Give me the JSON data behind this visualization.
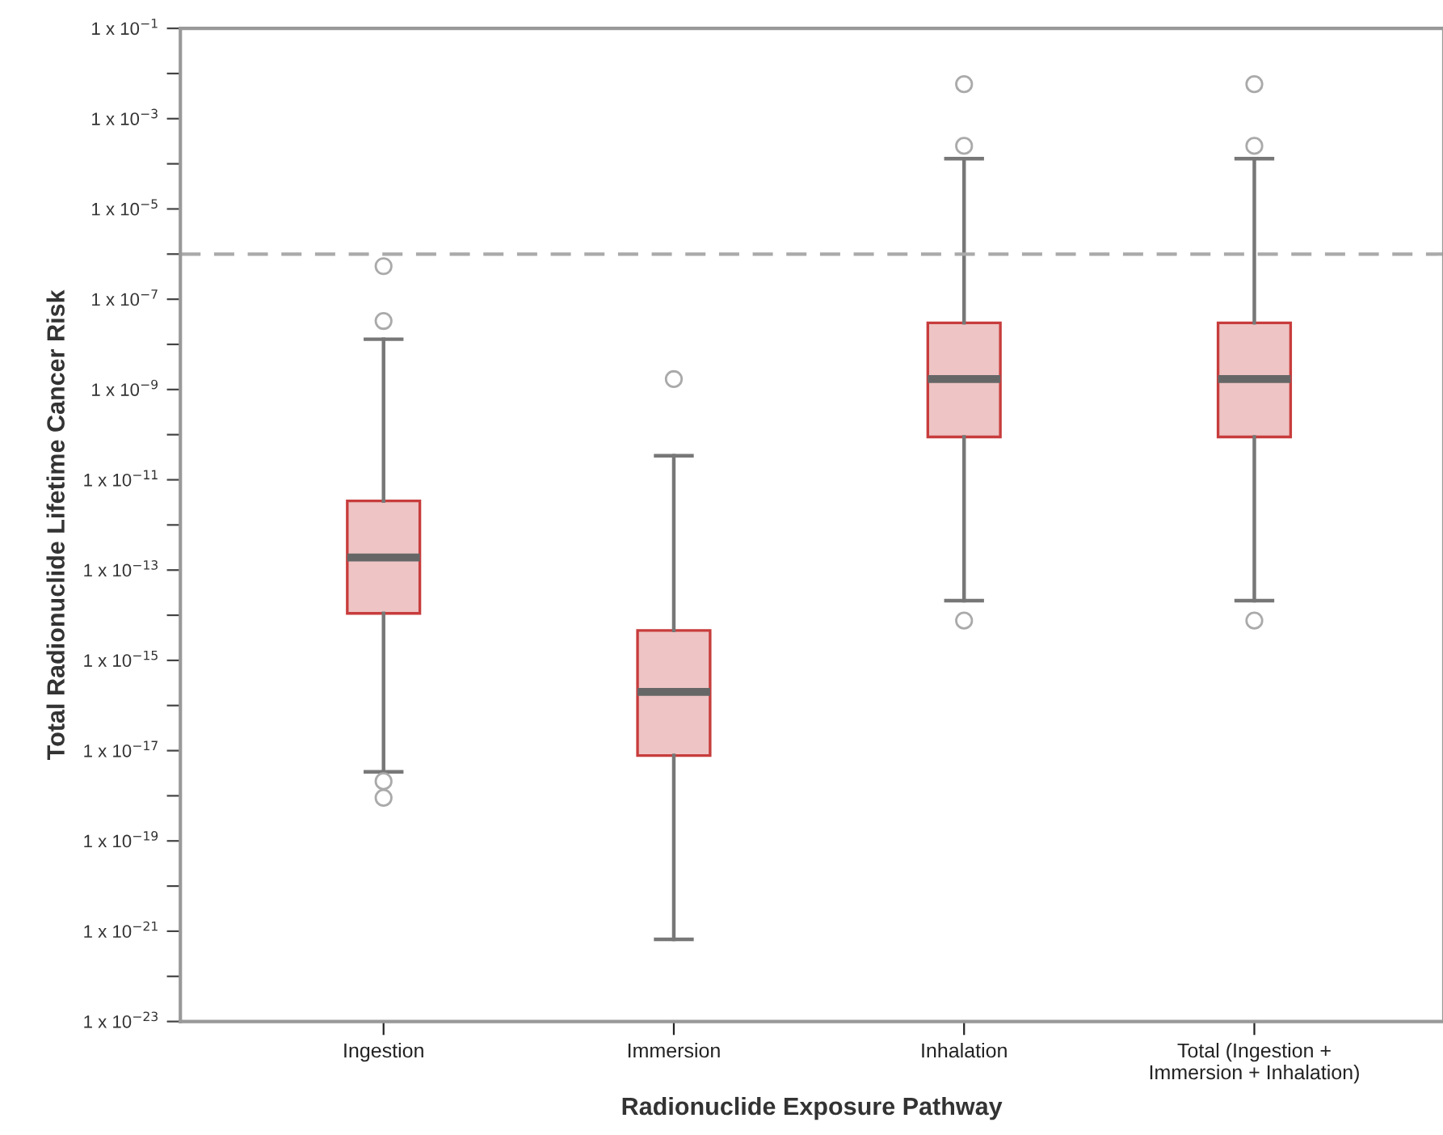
{
  "chart_data": {
    "type": "box",
    "xlabel": "Radionuclide Exposure Pathway",
    "ylabel": "Total Radionuclide Lifetime Cancer Risk",
    "categories": [
      "Ingestion",
      "Immersion",
      "Inhalation",
      "Total (Ingestion +\nImmersion + Inhalation)"
    ],
    "color": "#c83c3c",
    "boxes": [
      {
        "low": 3.4e-18,
        "q1": 1.1e-14,
        "median": 1.9e-13,
        "q3": 3.4e-12,
        "high": 1.3e-08,
        "outliers": [
          5.4e-07,
          3.3e-08,
          2.1e-18,
          9e-19
        ]
      },
      {
        "low": 6.6e-22,
        "q1": 7.8e-18,
        "median": 2e-16,
        "q3": 4.6e-15,
        "high": 3.4e-11,
        "outliers": [
          1.7e-09
        ]
      },
      {
        "low": 2.1e-14,
        "q1": 8.9e-11,
        "median": 1.7e-09,
        "q3": 3e-08,
        "high": 0.00013,
        "outliers": [
          0.0058,
          0.00025,
          7.6e-15
        ]
      },
      {
        "low": 2.1e-14,
        "q1": 8.9e-11,
        "median": 1.7e-09,
        "q3": 3e-08,
        "high": 0.00013,
        "outliers": [
          0.0058,
          0.00025,
          7.6e-15
        ]
      }
    ],
    "log": "y",
    "ylim": [
      1e-23,
      0.1
    ],
    "yticks": [
      {
        "value": 0.1,
        "label": "1 x 10$^{−1}$"
      },
      {
        "value": 0.01,
        "label": null
      },
      {
        "value": 0.001,
        "label": "1 x 10$^{−3}$"
      },
      {
        "value": 0.0001,
        "label": null
      },
      {
        "value": 1e-05,
        "label": "1 x 10$^{−5}$"
      },
      {
        "value": 1e-06,
        "label": null
      },
      {
        "value": 1e-07,
        "label": "1 x 10$^{−7}$"
      },
      {
        "value": 1e-08,
        "label": null
      },
      {
        "value": 1e-09,
        "label": "1 x 10$^{−9}$"
      },
      {
        "value": 1e-10,
        "label": null
      },
      {
        "value": 1e-11,
        "label": "1 x 10$^{−11}$"
      },
      {
        "value": 1e-12,
        "label": null
      },
      {
        "value": 1e-13,
        "label": "1 x 10$^{−13}$"
      },
      {
        "value": 1e-14,
        "label": null
      },
      {
        "value": 1e-15,
        "label": "1 x 10$^{−15}$"
      },
      {
        "value": 1e-16,
        "label": null
      },
      {
        "value": 1e-17,
        "label": "1 x 10$^{−17}$"
      },
      {
        "value": 1e-18,
        "label": null
      },
      {
        "value": 1e-19,
        "label": "1 x 10$^{−19}$"
      },
      {
        "value": 1e-20,
        "label": null
      },
      {
        "value": 1e-21,
        "label": "1 x 10$^{−21}$"
      },
      {
        "value": 1e-22,
        "label": null
      },
      {
        "value": 1e-23,
        "label": "1 x 10$^{−23}$"
      }
    ],
    "ref_lines": [
      {
        "axis": "y",
        "value": 1e-06,
        "color": "#aaaaaa",
        "line_style": "dashed"
      }
    ],
    "grid": false,
    "legend": false
  }
}
